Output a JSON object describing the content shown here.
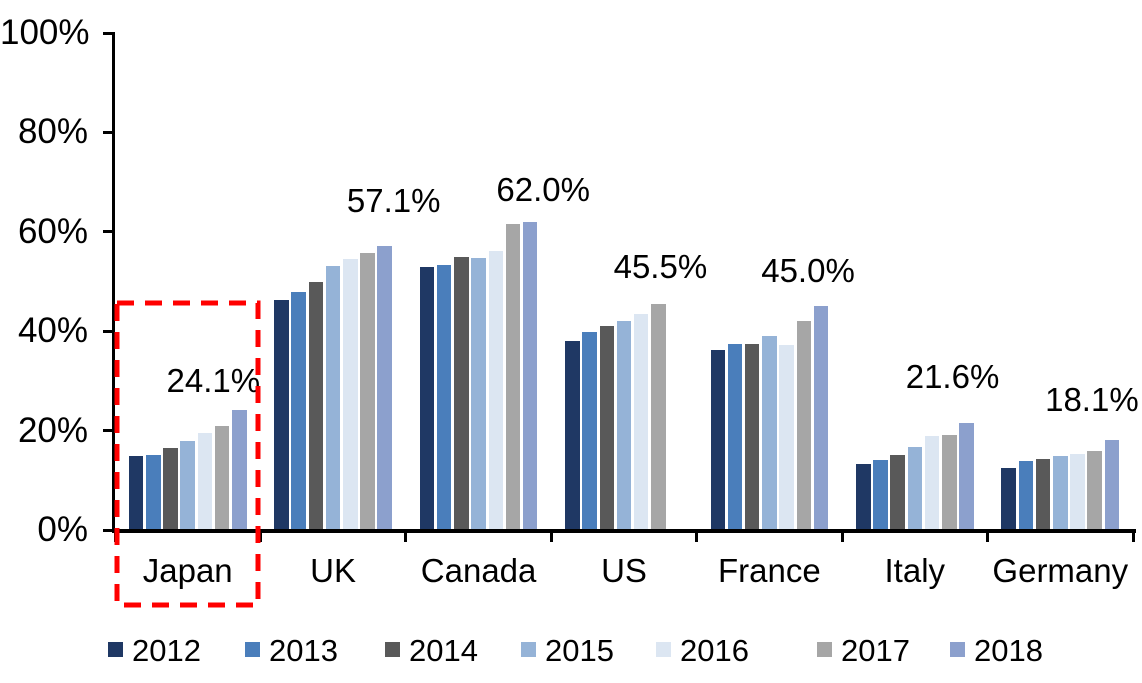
{
  "chart_data": {
    "type": "bar",
    "title": "",
    "categories": [
      "Japan",
      "UK",
      "Canada",
      "US",
      "France",
      "Italy",
      "Germany"
    ],
    "series": [
      {
        "name": "2012",
        "color": "#1F3864",
        "values": [
          14.8,
          46.3,
          53.0,
          38.0,
          36.2,
          13.2,
          12.4
        ]
      },
      {
        "name": "2013",
        "color": "#4A7EBB",
        "values": [
          15.1,
          47.8,
          53.4,
          39.9,
          37.5,
          14.0,
          13.9
        ]
      },
      {
        "name": "2014",
        "color": "#595959",
        "values": [
          16.6,
          49.9,
          54.9,
          41.0,
          37.4,
          15.2,
          14.2
        ]
      },
      {
        "name": "2015",
        "color": "#95B3D7",
        "values": [
          17.9,
          53.2,
          54.7,
          42.1,
          39.1,
          16.7,
          14.8
        ]
      },
      {
        "name": "2016",
        "color": "#DCE6F2",
        "values": [
          19.6,
          54.6,
          56.1,
          43.4,
          37.3,
          18.9,
          15.4
        ]
      },
      {
        "name": "2017",
        "color": "#A6A6A6",
        "values": [
          21.0,
          55.7,
          61.6,
          45.5,
          42.1,
          19.1,
          15.9
        ]
      },
      {
        "name": "2018",
        "color": "#8CA0CD",
        "values": [
          24.1,
          57.1,
          62.0,
          null,
          45.0,
          21.6,
          18.1
        ]
      }
    ],
    "data_labels": [
      "24.1%",
      "57.1%",
      "62.0%",
      "45.5%",
      "45.0%",
      "21.6%",
      "18.1%"
    ],
    "y_axis": {
      "min": 0,
      "max": 100,
      "ticks": [
        {
          "label": "0%",
          "value": 0
        },
        {
          "label": "20%",
          "value": 20
        },
        {
          "label": "40%",
          "value": 40
        },
        {
          "label": "60%",
          "value": 60
        },
        {
          "label": "80%",
          "value": 80
        },
        {
          "label": "100%",
          "value": 100
        }
      ]
    },
    "legend": {
      "position": "bottom",
      "entries": [
        "2012",
        "2013",
        "2014",
        "2015",
        "2016",
        "2017",
        "2018"
      ]
    },
    "grid": false,
    "annotation_box": {
      "category": "Japan",
      "color": "#FF0000",
      "style": "dashed"
    }
  }
}
